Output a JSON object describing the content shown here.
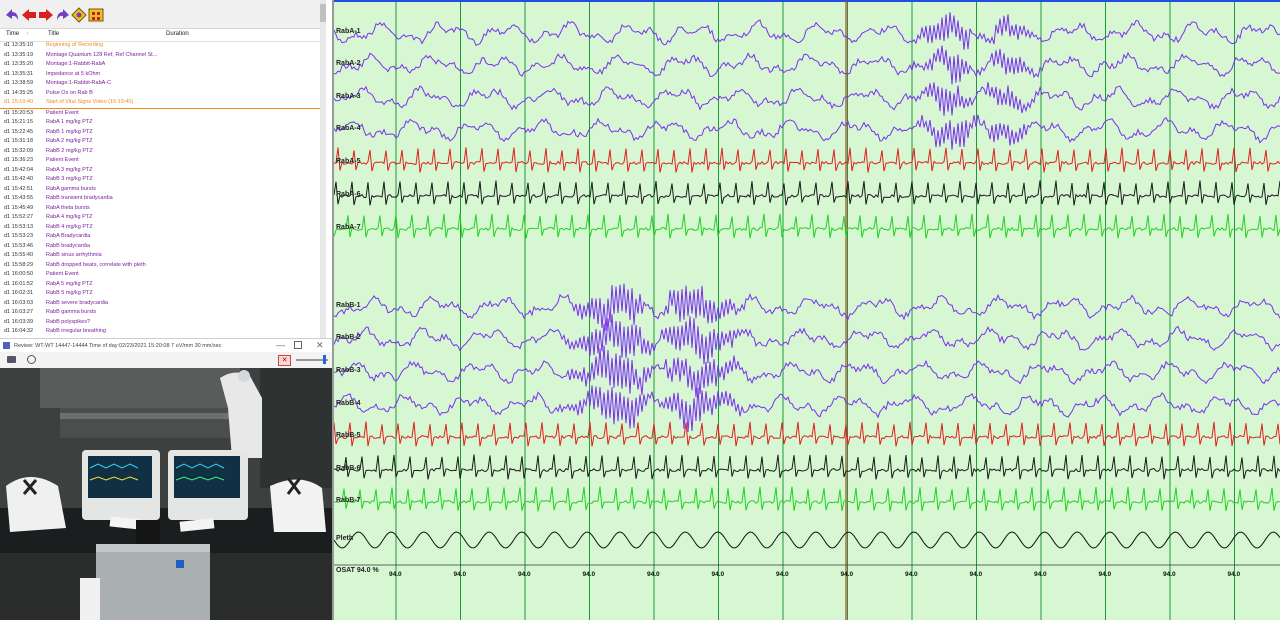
{
  "log": {
    "columns": {
      "time": "Time",
      "title": "Title",
      "duration": "Duration"
    },
    "rows": [
      {
        "time": "d1 13:35:10",
        "title": "Beginning of Recording",
        "color": "#f08a24"
      },
      {
        "time": "d1 13:35:19",
        "title": "Montage:Quantum 128 Ref, Ref Channel St...",
        "color": "#7a1f9e"
      },
      {
        "time": "d1 13:35:20",
        "title": "Montage:1-Rabbit-RabA",
        "color": "#7a1f9e"
      },
      {
        "time": "d1 13:35:31",
        "title": "Impedance at 5 kOhm",
        "color": "#7a1f9e"
      },
      {
        "time": "d1 13:38:59",
        "title": "Montage:1-Rabbit-RabA-C",
        "color": "#7a1f9e"
      },
      {
        "time": "d1 14:35:25",
        "title": "Pulse Ox on Rab B",
        "color": "#7a1f9e"
      },
      {
        "time": "d1 15:19:40",
        "title": "Start of Vital Signs Video (15:19:40)",
        "color": "#f08a24",
        "selected": true
      },
      {
        "time": "d1 15:20:53",
        "title": "Patient Event",
        "color": "#7a1f9e"
      },
      {
        "time": "d1 15:21:15",
        "title": "RabA 1 mg/kg PTZ",
        "color": "#7a1f9e"
      },
      {
        "time": "d1 15:22:45",
        "title": "RabB 1 mg/kg PTZ",
        "color": "#7a1f9e"
      },
      {
        "time": "d1 15:31:18",
        "title": "RabA 2 mg/kg PTZ",
        "color": "#7a1f9e"
      },
      {
        "time": "d1 15:32:09",
        "title": "RabB 2 mg/kg PTZ",
        "color": "#7a1f9e"
      },
      {
        "time": "d1 15:36:23",
        "title": "Patient Event",
        "color": "#7a1f9e"
      },
      {
        "time": "d1 15:42:04",
        "title": "RabA 3 mg/kg PTZ",
        "color": "#7a1f9e"
      },
      {
        "time": "d1 15:42:40",
        "title": "RabB 3 mg/kg PTZ",
        "color": "#7a1f9e"
      },
      {
        "time": "d1 15:42:51",
        "title": "RabA gamma bursts",
        "color": "#7a1f9e"
      },
      {
        "time": "d1 15:43:55",
        "title": "RabB transient bradycardia",
        "color": "#7a1f9e"
      },
      {
        "time": "d1 15:45:49",
        "title": "RabA theta bursts",
        "color": "#7a1f9e"
      },
      {
        "time": "d1 15:52:27",
        "title": "RabA 4 mg/kg PTZ",
        "color": "#7a1f9e"
      },
      {
        "time": "d1 15:53:13",
        "title": "RabB 4 mg/kg PTZ",
        "color": "#7a1f9e"
      },
      {
        "time": "d1 15:53:23",
        "title": "RabA Bradycardia",
        "color": "#7a1f9e"
      },
      {
        "time": "d1 15:53:46",
        "title": "RabB bradycardia",
        "color": "#7a1f9e"
      },
      {
        "time": "d1 15:55:40",
        "title": "RabB sinus arrhythmia",
        "color": "#7a1f9e"
      },
      {
        "time": "d1 15:58:29",
        "title": "RabB dropped beats, correlate with pleth",
        "color": "#7a1f9e"
      },
      {
        "time": "d1 16:00:50",
        "title": "Patient Event",
        "color": "#7a1f9e"
      },
      {
        "time": "d1 16:01:52",
        "title": "RabA 5 mg/kg PTZ",
        "color": "#7a1f9e"
      },
      {
        "time": "d1 16:02:31",
        "title": "RabB 5 mg/kg PTZ",
        "color": "#7a1f9e"
      },
      {
        "time": "d1 16:03:03",
        "title": "RabB severe bradycardia",
        "color": "#7a1f9e"
      },
      {
        "time": "d1 16:03:27",
        "title": "RabB gamma bursts",
        "color": "#7a1f9e"
      },
      {
        "time": "d1 16:03:39",
        "title": "RabB polyspikes?",
        "color": "#7a1f9e"
      },
      {
        "time": "d1 16:04:32",
        "title": "RabB irregular breathing",
        "color": "#7a1f9e"
      }
    ]
  },
  "video_window": {
    "title": "Review: WT-WT 14447-14444  Time of day:02/23/2021 15:20:08  7 uV/mm  30 mm/sec"
  },
  "icons": {
    "toolbar": [
      "undo-arrow-icon",
      "left-arrow-icon",
      "right-arrow-icon",
      "redo-arrow-icon",
      "tools-icon",
      "grid-icon"
    ],
    "window": [
      "minimize-icon",
      "maximize-icon",
      "close-icon"
    ]
  },
  "eeg": {
    "channels": [
      {
        "label": "RabA-1",
        "color": "#7b2ff2",
        "type": "eeg"
      },
      {
        "label": "RabA-2",
        "color": "#7b2ff2",
        "type": "eeg"
      },
      {
        "label": "RabA-3",
        "color": "#7b2ff2",
        "type": "eeg"
      },
      {
        "label": "RabA-4",
        "color": "#7b2ff2",
        "type": "eeg"
      },
      {
        "label": "RabA-5",
        "color": "#e02020",
        "type": "ecg"
      },
      {
        "label": "RabA-6",
        "color": "#1a1a1a",
        "type": "ecg"
      },
      {
        "label": "RabA-7",
        "color": "#22d11e",
        "type": "ecg"
      },
      {
        "label": "RabB-1",
        "color": "#7b2ff2",
        "type": "eeg"
      },
      {
        "label": "RabB-2",
        "color": "#7b2ff2",
        "type": "eeg"
      },
      {
        "label": "RabB-3",
        "color": "#7b2ff2",
        "type": "eeg"
      },
      {
        "label": "RabB-4",
        "color": "#7b2ff2",
        "type": "eeg"
      },
      {
        "label": "RabB-5",
        "color": "#e02020",
        "type": "ecg"
      },
      {
        "label": "RabB-6",
        "color": "#1a1a1a",
        "type": "ecg"
      },
      {
        "label": "RabB-7",
        "color": "#22d11e",
        "type": "ecg"
      },
      {
        "label": "Pleth",
        "color": "#111111",
        "type": "pleth"
      }
    ],
    "osat": {
      "label": "OSAT 94.0 %",
      "values": [
        "94.0",
        "94.0",
        "94.0",
        "94.0",
        "94.0",
        "94.0",
        "94.0",
        "94.0",
        "94.0",
        "94.0",
        "94.0",
        "94.0",
        "94.0",
        "94.0"
      ]
    },
    "colors": {
      "background": "#d6f7d2",
      "grid": "#1f9a3a",
      "cursor": "#c0392b"
    }
  }
}
